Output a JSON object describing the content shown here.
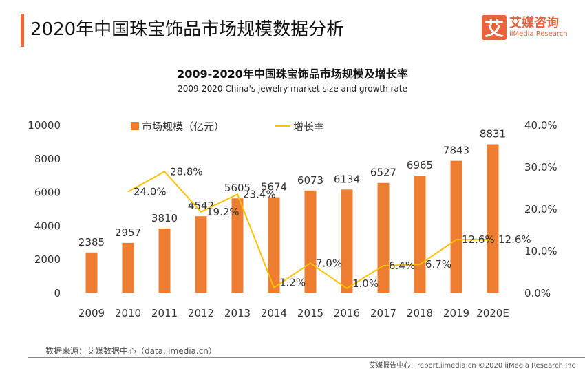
{
  "header": {
    "title": "2020年中国珠宝饰品市场规模数据分析",
    "logo_cn": "艾媒咨询",
    "logo_en": "iiMedia Research",
    "logo_mark": "艾"
  },
  "chart_data": {
    "type": "bar+line",
    "title": "2009-2020年中国珠宝饰品市场规模及增长率",
    "subtitle": "2009-2020 China's jewelry market size and growth rate",
    "categories": [
      "2009",
      "2010",
      "2011",
      "2012",
      "2013",
      "2014",
      "2015",
      "2016",
      "2017",
      "2018",
      "2019",
      "2020E"
    ],
    "series": [
      {
        "name": "市场规模（亿元）",
        "type": "bar",
        "axis": "left",
        "color": "#ed7d31",
        "values": [
          2385,
          2957,
          3810,
          4542,
          5605,
          5674,
          6073,
          6134,
          6527,
          6965,
          7843,
          8831
        ]
      },
      {
        "name": "增长率",
        "type": "line",
        "axis": "right",
        "color": "#ffc000",
        "values": [
          null,
          24.0,
          28.8,
          19.2,
          23.4,
          1.2,
          7.0,
          1.0,
          6.4,
          6.7,
          12.6,
          12.6
        ]
      }
    ],
    "left_axis": {
      "ylim": [
        0,
        10000
      ],
      "ticks": [
        "0",
        "2000",
        "4000",
        "6000",
        "8000",
        "10000"
      ]
    },
    "right_axis": {
      "ylim": [
        0,
        40
      ],
      "ticks": [
        "0.0%",
        "10.0%",
        "20.0%",
        "30.0%",
        "40.0%"
      ]
    },
    "legend": "top",
    "grid": false
  },
  "footer": {
    "source": "数据来源：艾媒数据中心（data.iimedia.cn）",
    "credit": "艾媒报告中心：report.iimedia.cn   ©2020  iiMedia Research  Inc"
  }
}
